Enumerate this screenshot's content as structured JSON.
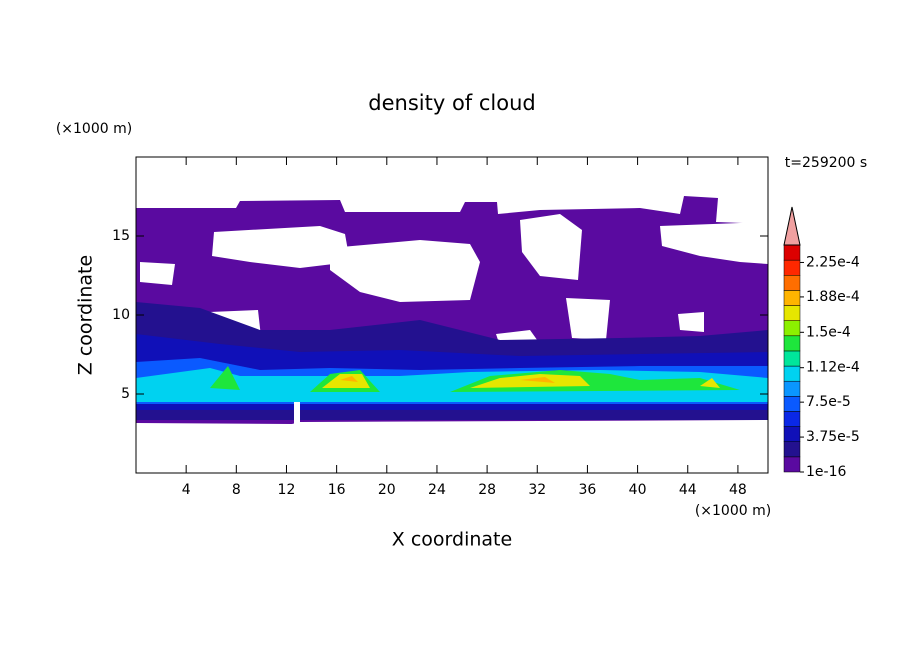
{
  "chart_data": {
    "type": "contour",
    "title": "density of cloud",
    "xlabel": "X coordinate",
    "ylabel": "Z coordinate",
    "xunit": "(×1000 m)",
    "yunit": "(×1000 m)",
    "time_label": "t=259200 s",
    "xlim": [
      0,
      50.4
    ],
    "ylim": [
      0,
      20
    ],
    "xticks": [
      4,
      8,
      12,
      16,
      20,
      24,
      28,
      32,
      36,
      40,
      44,
      48
    ],
    "yticks": [
      5,
      10,
      15
    ],
    "colorbar": {
      "clim": [
        1e-16,
        0.00024375
      ],
      "colors": [
        "#5a0aa0",
        "#23118f",
        "#1010b8",
        "#0a28e6",
        "#0a5aff",
        "#0a96ff",
        "#00d2f0",
        "#00e69b",
        "#1ee63c",
        "#8cf000",
        "#e6e600",
        "#ffb400",
        "#ff6e00",
        "#ff2800",
        "#dc0000"
      ],
      "extend_color": "#f0a0a0",
      "ticks": [
        1e-16,
        {
          "value": 3.75e-05,
          "label": "3.75e-5"
        },
        {
          "value": 7.5e-05,
          "label": "7.5e-5"
        },
        {
          "value": 0.000112,
          "label": "1.12e-4"
        },
        {
          "value": 0.00015,
          "label": "1.5e-4"
        },
        {
          "value": 0.000188,
          "label": "1.88e-4"
        },
        {
          "value": 0.000225,
          "label": "2.25e-4"
        }
      ]
    }
  }
}
